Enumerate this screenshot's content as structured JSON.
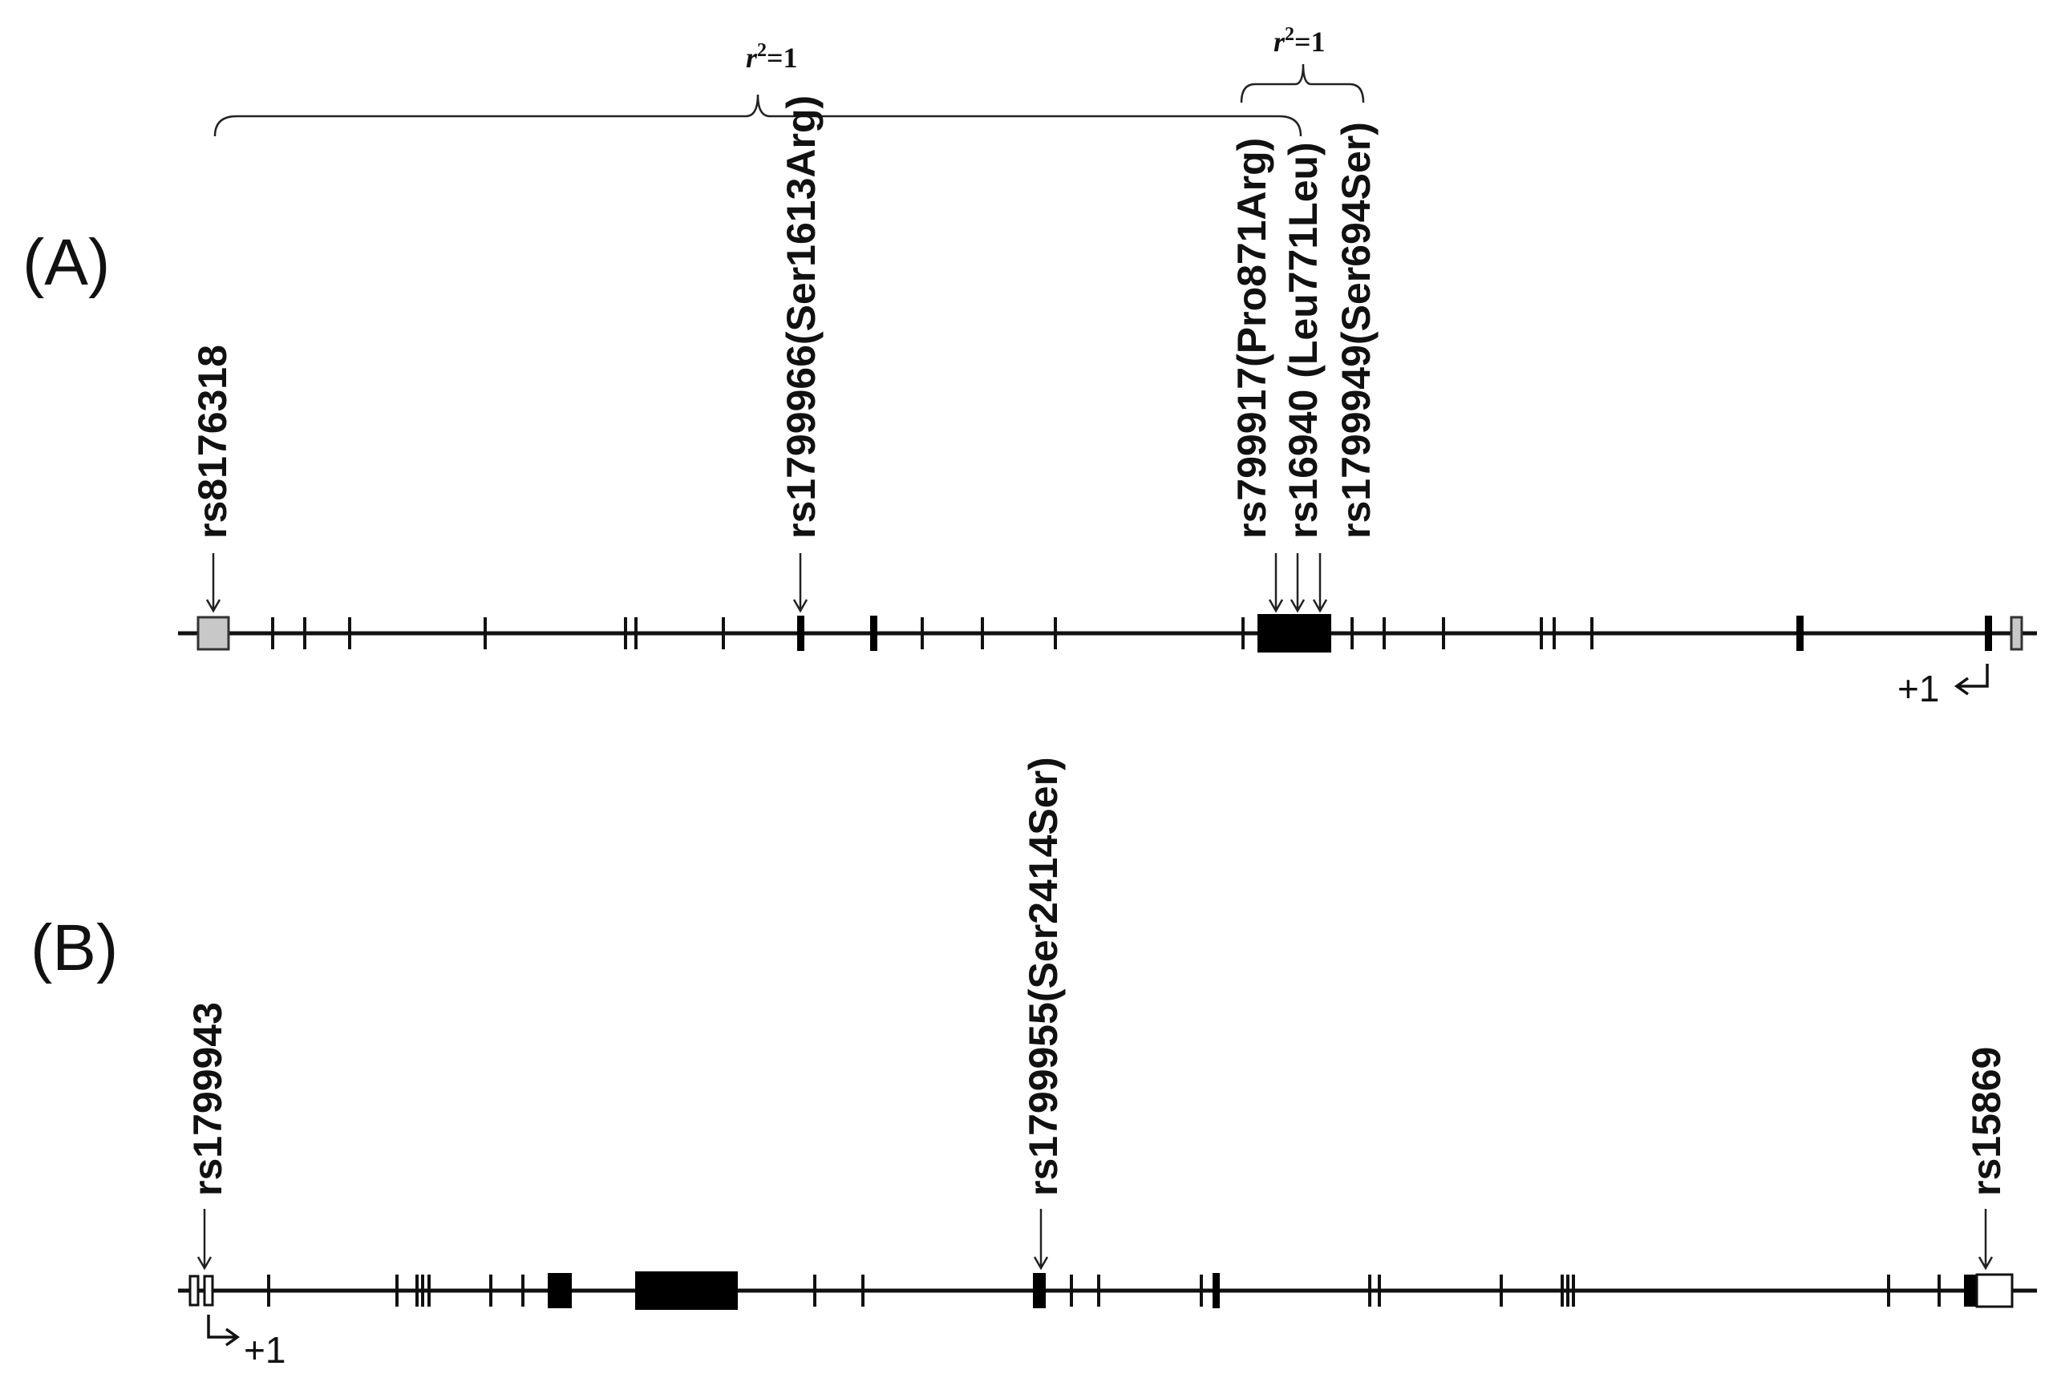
{
  "figure": {
    "panel_a": {
      "label": "(A)",
      "snps": [
        {
          "id": "rs8176318",
          "label": "rs8176318"
        },
        {
          "id": "rs1799966",
          "label": "rs1799966(Ser1613Arg)"
        },
        {
          "id": "rs799917",
          "label": "rs799917(Pro871Arg)"
        },
        {
          "id": "rs16940",
          "label": "rs16940 (Leu771Leu)"
        },
        {
          "id": "rs1799949",
          "label": "rs1799949(Ser694Ser)"
        }
      ],
      "ld_brackets": [
        {
          "label_prefix": "r",
          "label_sup": "2",
          "label_suffix": "=1"
        },
        {
          "label_prefix": "r",
          "label_sup": "2",
          "label_suffix": "=1"
        }
      ],
      "tss_label": "+1"
    },
    "panel_b": {
      "label": "(B)",
      "snps": [
        {
          "id": "rs1799943",
          "label": "rs1799943"
        },
        {
          "id": "rs1799955",
          "label": "rs1799955(Ser2414Ser)"
        },
        {
          "id": "rs15869",
          "label": "rs15869"
        }
      ],
      "tss_label": "+1"
    },
    "colors": {
      "line": "#111111",
      "coding_exon": "#000000",
      "utr_exon_a": "#c8c8c8",
      "utr_exon_b": "#ffffff"
    }
  }
}
